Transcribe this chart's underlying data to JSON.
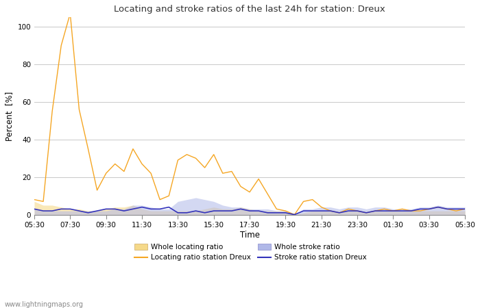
{
  "title": "Locating and stroke ratios of the last 24h for station: Dreux",
  "xlabel": "Time",
  "ylabel": "Percent  [%]",
  "ylim": [
    0,
    105
  ],
  "yticks": [
    0,
    20,
    40,
    60,
    80,
    100
  ],
  "xtick_labels": [
    "05:30",
    "07:30",
    "09:30",
    "11:30",
    "13:30",
    "15:30",
    "17:30",
    "19:30",
    "21:30",
    "23:30",
    "01:30",
    "03:30",
    "05:30"
  ],
  "bg_color": "#ffffff",
  "grid_color": "#c8c8c8",
  "watermark": "www.lightningmaps.org",
  "locating_line_color": "#f5a623",
  "stroke_line_color": "#3333bb",
  "locating_fill_color": "#f5d98a",
  "stroke_fill_color": "#b0b8e8",
  "locating_fill_alpha": 0.6,
  "stroke_fill_alpha": 0.55,
  "x_ticks": [
    0,
    4,
    8,
    12,
    16,
    20,
    24,
    28,
    32,
    36,
    40,
    44,
    48
  ],
  "locating_station": [
    8,
    7,
    55,
    90,
    107,
    56,
    35,
    13,
    22,
    27,
    23,
    35,
    27,
    22,
    8,
    10,
    29,
    32,
    30,
    25,
    32,
    22,
    23,
    15,
    12,
    19,
    11,
    3,
    2,
    0,
    7,
    8,
    4,
    2,
    1,
    3,
    2,
    1,
    2,
    3,
    2,
    3,
    2,
    2,
    3,
    4,
    3,
    2,
    3
  ],
  "stroke_station": [
    3,
    2,
    2,
    3,
    3,
    2,
    1,
    2,
    3,
    3,
    2,
    3,
    4,
    3,
    3,
    4,
    1,
    1,
    2,
    1,
    2,
    2,
    2,
    3,
    2,
    2,
    1,
    1,
    1,
    0,
    2,
    2,
    2,
    2,
    1,
    2,
    2,
    1,
    2,
    2,
    2,
    2,
    2,
    3,
    3,
    4,
    3,
    3,
    3
  ],
  "locating_whole": [
    7,
    5,
    5,
    4,
    3,
    3,
    2,
    2,
    3,
    4,
    4,
    5,
    3,
    2,
    2,
    2,
    2,
    2,
    2,
    3,
    4,
    3,
    3,
    4,
    3,
    2,
    2,
    2,
    2,
    0,
    1,
    2,
    2,
    2,
    1,
    2,
    2,
    1,
    2,
    2,
    2,
    2,
    2,
    2,
    2,
    2,
    2,
    2,
    2
  ],
  "stroke_whole": [
    3,
    2,
    2,
    2,
    2,
    2,
    2,
    2,
    2,
    3,
    3,
    5,
    5,
    4,
    3,
    3,
    7,
    8,
    9,
    8,
    7,
    5,
    4,
    4,
    3,
    3,
    3,
    2,
    2,
    0,
    3,
    3,
    4,
    4,
    3,
    4,
    4,
    3,
    4,
    4,
    3,
    3,
    3,
    4,
    4,
    5,
    4,
    4,
    4
  ]
}
